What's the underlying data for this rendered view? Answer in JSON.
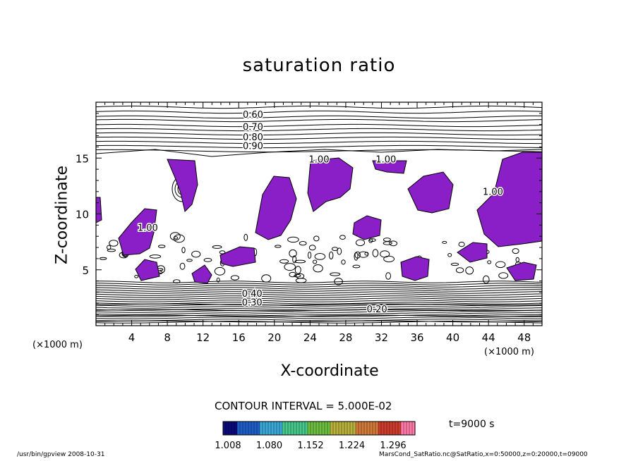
{
  "chart_data": {
    "type": "heatmap",
    "title": "saturation ratio",
    "xlabel": "X-coordinate",
    "ylabel": "Z-coordinate",
    "x_unit_label": "(×1000 m)",
    "x_ticks": [
      4,
      8,
      12,
      16,
      20,
      24,
      28,
      32,
      36,
      40,
      44,
      48
    ],
    "y_ticks": [
      5,
      10,
      15
    ],
    "xlim": [
      0,
      50
    ],
    "ylim": [
      0,
      20
    ],
    "contour_labels": [
      {
        "text": "0.60",
        "x": 17.6,
        "z": 18.6
      },
      {
        "text": "0.70",
        "x": 17.6,
        "z": 17.5
      },
      {
        "text": "0.80",
        "x": 17.6,
        "z": 16.6
      },
      {
        "text": "0.90",
        "x": 17.6,
        "z": 15.8
      },
      {
        "text": "1.00",
        "x": 25.0,
        "z": 14.6
      },
      {
        "text": "1.00",
        "x": 32.5,
        "z": 14.6
      },
      {
        "text": "1.00",
        "x": 44.5,
        "z": 11.7
      },
      {
        "text": "1.00",
        "x": 5.8,
        "z": 8.5
      },
      {
        "text": "0.20",
        "x": 31.5,
        "z": 1.2
      },
      {
        "text": "0.30",
        "x": 17.5,
        "z": 1.8
      },
      {
        "text": "0.40",
        "x": 17.5,
        "z": 2.6
      }
    ],
    "supersaturated_regions_color": "#8a1fc8",
    "contour_interval": "CONTOUR INTERVAL = 5.000E-02",
    "colorbar": {
      "tick_labels": [
        "1.008",
        "1.080",
        "1.152",
        "1.224",
        "1.296"
      ],
      "colors": [
        "#0b0b7a",
        "#1d5fc7",
        "#3aa9d8",
        "#46c88a",
        "#6fbf3f",
        "#b9b13c",
        "#d37a3a",
        "#cc3b2c",
        "#ff7aa8"
      ]
    },
    "time_label": "t=9000 s"
  },
  "footer": {
    "left": "/usr/bin/gpview   2008-10-31",
    "right": "MarsCond_SatRatio.nc@SatRatio,x=0:50000,z=0:20000,t=09000"
  }
}
